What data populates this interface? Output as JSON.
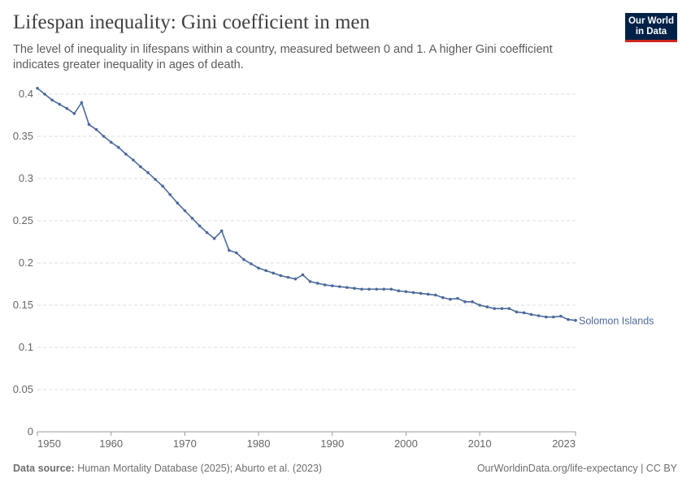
{
  "header": {
    "title": "Lifespan inequality: Gini coefficient in men",
    "subtitle": "The level of inequality in lifespans within a country, measured between 0 and 1. A higher Gini coefficient indicates greater inequality in ages of death.",
    "logo": "Our World in Data"
  },
  "footer": {
    "source_label": "Data source:",
    "source": "Human Mortality Database (2025); Aburto et al. (2023)",
    "link": "OurWorldinData.org/life-expectancy | CC BY"
  },
  "colors": {
    "series": "#4c6a9c",
    "grid": "#dddddd"
  },
  "chart_data": {
    "type": "line",
    "title": "Lifespan inequality: Gini coefficient in men",
    "xlabel": "",
    "ylabel": "",
    "xlim": [
      1950,
      2023
    ],
    "ylim": [
      0,
      0.4
    ],
    "grid": "horizontal dashed",
    "x_ticks": [
      "1950",
      "1960",
      "1970",
      "1980",
      "1990",
      "2000",
      "2010",
      "2023"
    ],
    "y_ticks": [
      "0",
      "0.05",
      "0.1",
      "0.15",
      "0.2",
      "0.25",
      "0.3",
      "0.35",
      "0.4"
    ],
    "series": [
      {
        "name": "Solomon Islands",
        "x": [
          1950,
          1951,
          1952,
          1953,
          1954,
          1955,
          1956,
          1957,
          1958,
          1959,
          1960,
          1961,
          1962,
          1963,
          1964,
          1965,
          1966,
          1967,
          1968,
          1969,
          1970,
          1971,
          1972,
          1973,
          1974,
          1975,
          1976,
          1977,
          1978,
          1979,
          1980,
          1981,
          1982,
          1983,
          1984,
          1985,
          1986,
          1987,
          1988,
          1989,
          1990,
          1991,
          1992,
          1993,
          1994,
          1995,
          1996,
          1997,
          1998,
          1999,
          2000,
          2001,
          2002,
          2003,
          2004,
          2005,
          2006,
          2007,
          2008,
          2009,
          2010,
          2011,
          2012,
          2013,
          2014,
          2015,
          2016,
          2017,
          2018,
          2019,
          2020,
          2021,
          2022,
          2023
        ],
        "values": [
          0.407,
          0.4,
          0.393,
          0.388,
          0.383,
          0.377,
          0.39,
          0.364,
          0.358,
          0.35,
          0.343,
          0.337,
          0.329,
          0.322,
          0.314,
          0.307,
          0.299,
          0.291,
          0.281,
          0.271,
          0.262,
          0.253,
          0.244,
          0.236,
          0.229,
          0.238,
          0.215,
          0.212,
          0.204,
          0.199,
          0.194,
          0.191,
          0.188,
          0.185,
          0.183,
          0.181,
          0.186,
          0.178,
          0.176,
          0.174,
          0.173,
          0.172,
          0.171,
          0.17,
          0.169,
          0.169,
          0.169,
          0.169,
          0.169,
          0.167,
          0.166,
          0.165,
          0.164,
          0.163,
          0.162,
          0.159,
          0.157,
          0.158,
          0.154,
          0.154,
          0.15,
          0.148,
          0.146,
          0.146,
          0.146,
          0.142,
          0.141,
          0.139,
          0.1375,
          0.136,
          0.136,
          0.137,
          0.133,
          0.132
        ]
      }
    ]
  }
}
